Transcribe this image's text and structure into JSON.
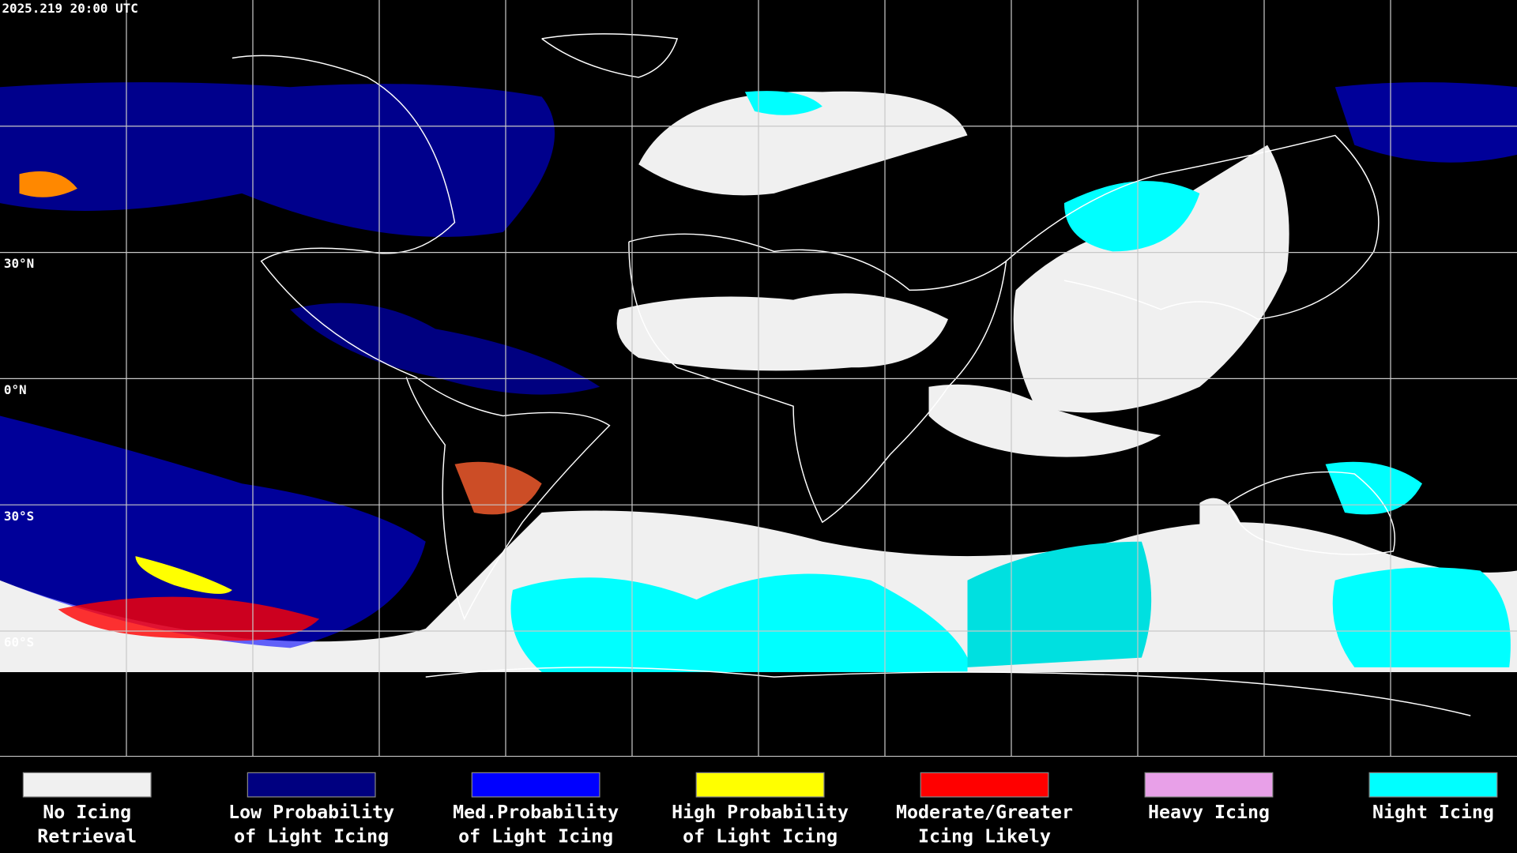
{
  "timestamp": "2025.219 20:00 UTC",
  "lat_labels": [
    "30°N",
    "0°N",
    "30°S",
    "60°S"
  ],
  "legend": [
    {
      "color": "#f0f0f0",
      "lines": [
        "No Icing",
        "Retrieval"
      ]
    },
    {
      "color": "#000080",
      "lines": [
        "Low Probability",
        "of Light Icing"
      ]
    },
    {
      "color": "#0000ff",
      "lines": [
        "Med.Probability",
        "of Light Icing"
      ]
    },
    {
      "color": "#ffff00",
      "lines": [
        "High Probability",
        "of Light Icing"
      ]
    },
    {
      "color": "#ff0000",
      "lines": [
        "Moderate/Greater",
        "Icing Likely"
      ]
    },
    {
      "color": "#e8a0e8",
      "lines": [
        "Heavy Icing",
        ""
      ]
    },
    {
      "color": "#00ffff",
      "lines": [
        "Night Icing",
        ""
      ]
    }
  ]
}
